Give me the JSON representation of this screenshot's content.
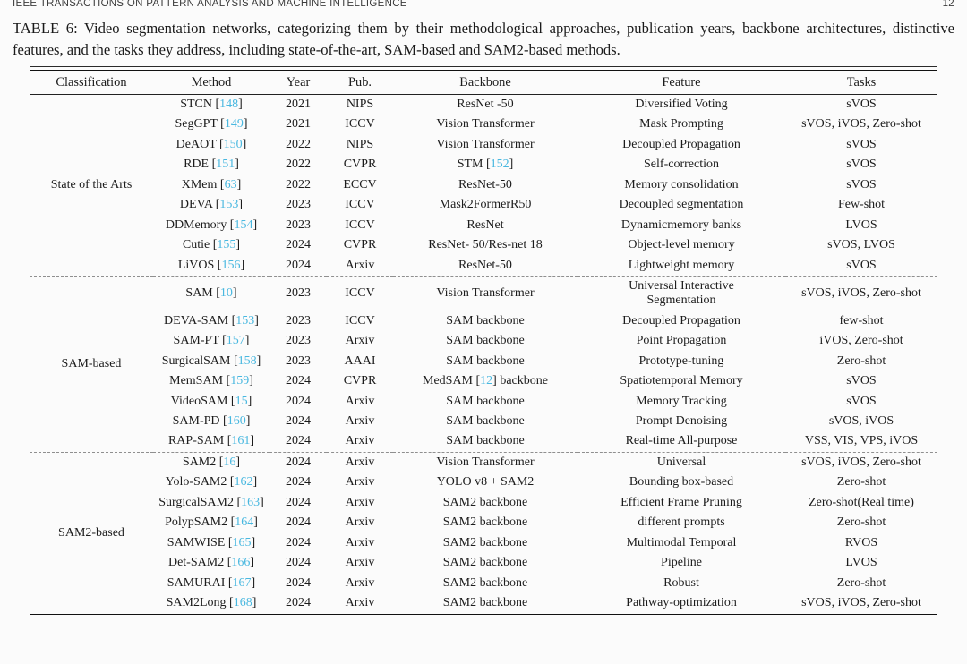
{
  "page": {
    "running_header": "IEEE TRANSACTIONS ON PATTERN ANALYSIS AND MACHINE INTELLIGENCE",
    "page_number": "12",
    "caption": "TABLE 6: Video segmentation networks, categorizing them by their methodological approaches, publication years, backbone architectures, distinctive features, and the tasks they address, including state-of-the-art, SAM-based and SAM2-based methods."
  },
  "colors": {
    "citation": "#49b8e0",
    "text": "#1c1c1c"
  },
  "table": {
    "columns": [
      {
        "key": "classification",
        "label": "Classification"
      },
      {
        "key": "method",
        "label": "Method"
      },
      {
        "key": "year",
        "label": "Year"
      },
      {
        "key": "pub",
        "label": "Pub."
      },
      {
        "key": "backbone",
        "label": "Backbone"
      },
      {
        "key": "feature",
        "label": "Feature"
      },
      {
        "key": "tasks",
        "label": "Tasks"
      }
    ],
    "groups": [
      {
        "classification": "State of the Arts",
        "rows": [
          {
            "method": {
              "pre": "STCN ",
              "cite": "148"
            },
            "year": "2021",
            "pub": "NIPS",
            "backbone": "ResNet -50",
            "feature": "Diversified Voting",
            "tasks": "sVOS"
          },
          {
            "method": {
              "pre": "SegGPT ",
              "cite": "149"
            },
            "year": "2021",
            "pub": "ICCV",
            "backbone": "Vision Transformer",
            "feature": "Mask Prompting",
            "tasks": "sVOS, iVOS, Zero-shot"
          },
          {
            "method": {
              "pre": "DeAOT ",
              "cite": "150"
            },
            "year": "2022",
            "pub": "NIPS",
            "backbone": "Vision Transformer",
            "feature": "Decoupled Propagation",
            "tasks": "sVOS"
          },
          {
            "method": {
              "pre": "RDE ",
              "cite": "151"
            },
            "year": "2022",
            "pub": "CVPR",
            "backbone": {
              "pre": "STM ",
              "cite": "152"
            },
            "feature": "Self-correction",
            "tasks": "sVOS"
          },
          {
            "method": {
              "pre": "XMem ",
              "cite": "63"
            },
            "year": "2022",
            "pub": "ECCV",
            "backbone": "ResNet-50",
            "feature": "Memory consolidation",
            "tasks": "sVOS"
          },
          {
            "method": {
              "pre": "DEVA ",
              "cite": "153"
            },
            "year": "2023",
            "pub": "ICCV",
            "backbone": "Mask2FormerR50",
            "feature": "Decoupled segmentation",
            "tasks": "Few-shot"
          },
          {
            "method": {
              "pre": "DDMemory ",
              "cite": "154"
            },
            "year": "2023",
            "pub": "ICCV",
            "backbone": "ResNet",
            "feature": "Dynamicmemory banks",
            "tasks": "LVOS"
          },
          {
            "method": {
              "pre": "Cutie ",
              "cite": "155"
            },
            "year": "2024",
            "pub": "CVPR",
            "backbone": "ResNet- 50/Res-net 18",
            "feature": "Object-level memory",
            "tasks": "sVOS, LVOS"
          },
          {
            "method": {
              "pre": "LiVOS ",
              "cite": "156"
            },
            "year": "2024",
            "pub": "Arxiv",
            "backbone": "ResNet-50",
            "feature": "Lightweight memory",
            "tasks": "sVOS"
          }
        ]
      },
      {
        "classification": "SAM-based",
        "rows": [
          {
            "method": {
              "pre": "SAM ",
              "cite": "10"
            },
            "year": "2023",
            "pub": "ICCV",
            "backbone": "Vision Transformer",
            "feature": "Universal Interactive Segmentation",
            "tasks": "sVOS, iVOS, Zero-shot"
          },
          {
            "method": {
              "pre": "DEVA-SAM ",
              "cite": "153"
            },
            "year": "2023",
            "pub": "ICCV",
            "backbone": "SAM backbone",
            "feature": "Decoupled Propagation",
            "tasks": "few-shot"
          },
          {
            "method": {
              "pre": "SAM-PT ",
              "cite": "157"
            },
            "year": "2023",
            "pub": "Arxiv",
            "backbone": "SAM backbone",
            "feature": "Point Propagation",
            "tasks": "iVOS, Zero-shot"
          },
          {
            "method": {
              "pre": "SurgicalSAM ",
              "cite": "158"
            },
            "year": "2023",
            "pub": "AAAI",
            "backbone": "SAM backbone",
            "feature": "Prototype-tuning",
            "tasks": "Zero-shot"
          },
          {
            "method": {
              "pre": "MemSAM ",
              "cite": "159"
            },
            "year": "2024",
            "pub": "CVPR",
            "backbone": {
              "pre": "MedSAM ",
              "cite": "12",
              "post": " backbone"
            },
            "feature": "Spatiotemporal Memory",
            "tasks": "sVOS"
          },
          {
            "method": {
              "pre": "VideoSAM ",
              "cite": "15"
            },
            "year": "2024",
            "pub": "Arxiv",
            "backbone": "SAM backbone",
            "feature": "Memory Tracking",
            "tasks": "sVOS"
          },
          {
            "method": {
              "pre": "SAM-PD ",
              "cite": "160"
            },
            "year": "2024",
            "pub": "Arxiv",
            "backbone": "SAM backbone",
            "feature": "Prompt Denoising",
            "tasks": "sVOS, iVOS"
          },
          {
            "method": {
              "pre": "RAP-SAM ",
              "cite": "161"
            },
            "year": "2024",
            "pub": "Arxiv",
            "backbone": "SAM backbone",
            "feature": "Real-time All-purpose",
            "tasks": "VSS, VIS, VPS, iVOS"
          }
        ]
      },
      {
        "classification": "SAM2-based",
        "rows": [
          {
            "method": {
              "pre": "SAM2 ",
              "cite": "16"
            },
            "year": "2024",
            "pub": "Arxiv",
            "backbone": "Vision Transformer",
            "feature": "Universal",
            "tasks": "sVOS, iVOS, Zero-shot"
          },
          {
            "method": {
              "pre": "Yolo-SAM2 ",
              "cite": "162"
            },
            "year": "2024",
            "pub": "Arxiv",
            "backbone": "YOLO v8 + SAM2",
            "feature": "Bounding box-based",
            "tasks": "Zero-shot"
          },
          {
            "method": {
              "pre": "SurgicalSAM2 ",
              "cite": "163"
            },
            "year": "2024",
            "pub": "Arxiv",
            "backbone": "SAM2 backbone",
            "feature": "Efficient Frame Pruning",
            "tasks": "Zero-shot(Real time)"
          },
          {
            "method": {
              "pre": "PolypSAM2 ",
              "cite": "164"
            },
            "year": "2024",
            "pub": "Arxiv",
            "backbone": "SAM2 backbone",
            "feature": "different prompts",
            "tasks": "Zero-shot"
          },
          {
            "method": {
              "pre": "SAMWISE ",
              "cite": "165"
            },
            "year": "2024",
            "pub": "Arxiv",
            "backbone": "SAM2 backbone",
            "feature": "Multimodal Temporal",
            "tasks": "RVOS"
          },
          {
            "method": {
              "pre": "Det-SAM2 ",
              "cite": "166"
            },
            "year": "2024",
            "pub": "Arxiv",
            "backbone": "SAM2 backbone",
            "feature": "Pipeline",
            "tasks": "LVOS"
          },
          {
            "method": {
              "pre": "SAMURAI ",
              "cite": "167"
            },
            "year": "2024",
            "pub": "Arxiv",
            "backbone": "SAM2 backbone",
            "feature": "Robust",
            "tasks": "Zero-shot"
          },
          {
            "method": {
              "pre": "SAM2Long ",
              "cite": "168"
            },
            "year": "2024",
            "pub": "Arxiv",
            "backbone": "SAM2 backbone",
            "feature": "Pathway-optimization",
            "tasks": "sVOS, iVOS, Zero-shot"
          }
        ]
      }
    ]
  }
}
